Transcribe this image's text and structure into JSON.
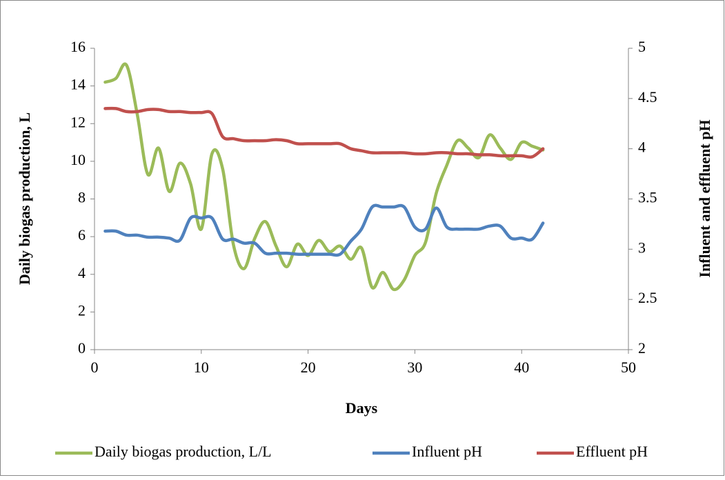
{
  "chart_data": {
    "type": "line",
    "x_label": "Days",
    "y_label": "Daily biogas production, L",
    "y2_label": "Influent and effluent pH",
    "x": [
      1,
      2,
      3,
      4,
      5,
      6,
      7,
      8,
      9,
      10,
      11,
      12,
      13,
      14,
      15,
      16,
      17,
      18,
      19,
      20,
      21,
      22,
      23,
      24,
      25,
      26,
      27,
      28,
      29,
      30,
      31,
      32,
      33,
      34,
      35,
      36,
      37,
      38,
      39,
      40,
      41,
      42
    ],
    "series": [
      {
        "name": "Daily biogas production, L/L",
        "color": "#9bbb59",
        "values": [
          14.2,
          14.4,
          15.1,
          12.5,
          9.3,
          10.7,
          8.4,
          9.9,
          8.8,
          6.4,
          10.4,
          9.6,
          5.6,
          4.3,
          5.9,
          6.8,
          5.5,
          4.4,
          5.6,
          5.0,
          5.8,
          5.2,
          5.5,
          4.8,
          5.4,
          3.3,
          4.1,
          3.2,
          3.7,
          5.0,
          5.7,
          8.3,
          9.8,
          11.1,
          10.7,
          10.2,
          11.4,
          10.7,
          10.1,
          11.0,
          10.8,
          10.6
        ]
      },
      {
        "name": "Influent pH",
        "color": "#4f81bd",
        "axis": "y2",
        "values": [
          3.18,
          3.18,
          3.14,
          3.14,
          3.12,
          3.12,
          3.11,
          3.09,
          3.31,
          3.31,
          3.31,
          3.1,
          3.1,
          3.06,
          3.06,
          2.96,
          2.96,
          2.96,
          2.95,
          2.95,
          2.95,
          2.95,
          2.95,
          3.08,
          3.2,
          3.42,
          3.42,
          3.42,
          3.42,
          3.22,
          3.2,
          3.41,
          3.22,
          3.2,
          3.2,
          3.2,
          3.23,
          3.23,
          3.11,
          3.11,
          3.1,
          3.26
        ]
      },
      {
        "name": "Effluent pH",
        "color": "#c0504d",
        "axis": "y2",
        "values": [
          4.4,
          4.4,
          4.37,
          4.37,
          4.39,
          4.39,
          4.37,
          4.37,
          4.36,
          4.36,
          4.35,
          4.12,
          4.1,
          4.08,
          4.08,
          4.08,
          4.09,
          4.08,
          4.05,
          4.05,
          4.05,
          4.05,
          4.05,
          4.0,
          3.98,
          3.96,
          3.96,
          3.96,
          3.96,
          3.95,
          3.95,
          3.96,
          3.96,
          3.95,
          3.95,
          3.94,
          3.94,
          3.93,
          3.93,
          3.93,
          3.92,
          4.0
        ]
      }
    ],
    "xlim": [
      0,
      50
    ],
    "xticks": [
      0,
      10,
      20,
      30,
      40,
      50
    ],
    "ylim": [
      0,
      16
    ],
    "yticks": [
      0,
      2,
      4,
      6,
      8,
      10,
      12,
      14,
      16
    ],
    "y2lim": [
      2,
      5
    ],
    "y2ticks": [
      2,
      2.5,
      3,
      3.5,
      4,
      4.5,
      5
    ],
    "legend": "bottom"
  }
}
